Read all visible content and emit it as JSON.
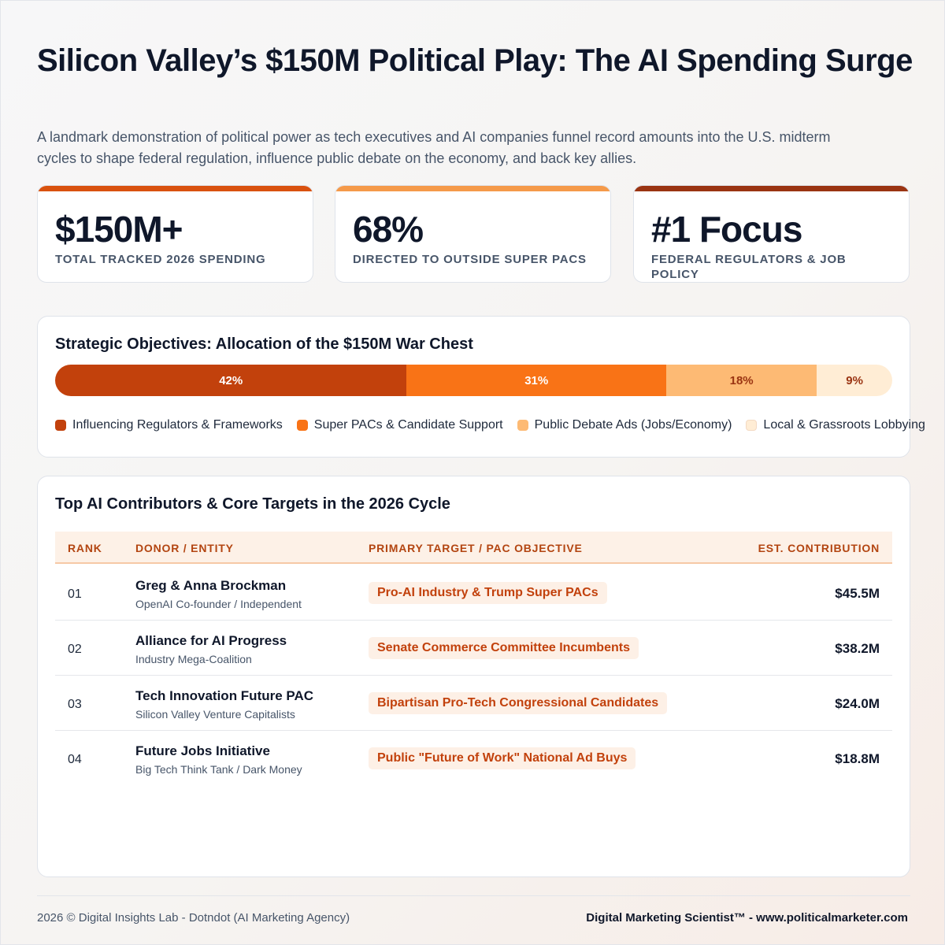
{
  "header": {
    "title": "Silicon Valley’s $150M Political Play: The AI Spending Surge",
    "subtitle": "A landmark demonstration of political power as tech executives and AI companies funnel record amounts into the U.S. midterm cycles to shape federal regulation, influence public debate on the economy, and back key allies."
  },
  "stats": [
    {
      "value": "$150M+",
      "label": "TOTAL TRACKED 2026 SPENDING",
      "color": "#d9520f"
    },
    {
      "value": "68%",
      "label": "DIRECTED TO OUTSIDE SUPER PACS",
      "color": "#f59a4a"
    },
    {
      "value": "#1 Focus",
      "label": "FEDERAL REGULATORS & JOB POLICY",
      "color": "#9a3412"
    }
  ],
  "allocation": {
    "title": "Strategic Objectives: Allocation of the $150M War Chest"
  },
  "chart_data": {
    "type": "bar",
    "stacked": true,
    "orientation": "horizontal",
    "title": "Strategic Objectives: Allocation of the $150M War Chest",
    "categories": [
      "Influencing Regulators & Frameworks",
      "Super PACs & Candidate Support",
      "Public Debate Ads (Jobs/Economy)",
      "Local & Grassroots Lobbying"
    ],
    "values": [
      42,
      31,
      18,
      9
    ],
    "labels": [
      "42%",
      "31%",
      "18%",
      "9%"
    ],
    "colors": [
      "#c2410c",
      "#f97316",
      "#fdba74",
      "#ffedd5"
    ],
    "text_colors": [
      "#ffffff",
      "#ffffff",
      "#9a3412",
      "#9a3412"
    ],
    "legend": "bottom"
  },
  "table": {
    "title": "Top AI Contributors & Core Targets in the 2026 Cycle",
    "columns": [
      "RANK",
      "DONOR / ENTITY",
      "PRIMARY TARGET / PAC OBJECTIVE",
      "EST. CONTRIBUTION"
    ],
    "rows": [
      {
        "rank": "01",
        "donor": "Greg & Anna Brockman",
        "sub": "OpenAI Co-founder / Independent",
        "target": "Pro-AI Industry & Trump Super PACs",
        "amount": "$45.5M"
      },
      {
        "rank": "02",
        "donor": "Alliance for AI Progress",
        "sub": "Industry Mega-Coalition",
        "target": "Senate Commerce Committee Incumbents",
        "amount": "$38.2M"
      },
      {
        "rank": "03",
        "donor": "Tech Innovation Future PAC",
        "sub": "Silicon Valley Venture Capitalists",
        "target": "Bipartisan Pro-Tech Congressional Candidates",
        "amount": "$24.0M"
      },
      {
        "rank": "04",
        "donor": "Future Jobs Initiative",
        "sub": "Big Tech Think Tank / Dark Money",
        "target": "Public \"Future of Work\" National Ad Buys",
        "amount": "$18.8M"
      }
    ]
  },
  "footer": {
    "left": "2026 © Digital Insights Lab - Dotndot (AI Marketing Agency)",
    "right": "Digital Marketing Scientist™ - www.politicalmarketer.com"
  }
}
